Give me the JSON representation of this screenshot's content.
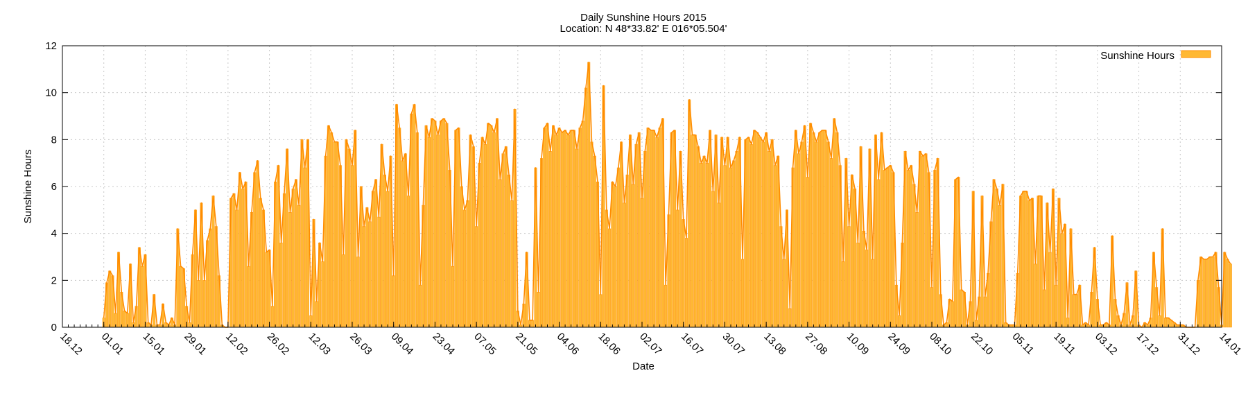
{
  "chart_data": {
    "type": "bar",
    "title": "Daily Sunshine Hours 2015",
    "subtitle": "Location: N 48*33.82'  E 016*05.504'",
    "xlabel": "Date",
    "ylabel": "Sunshine Hours",
    "legend_position": "top-right",
    "grid": true,
    "colors": {
      "fill": "#ffb833",
      "stroke": "#ff8c00"
    },
    "ylim": [
      0,
      12
    ],
    "yticks": [
      0,
      2,
      4,
      6,
      8,
      10,
      12
    ],
    "xlim": [
      "2014-12-18",
      "2016-01-14"
    ],
    "xtick_dates": [
      "2014-12-18",
      "2015-01-01",
      "2015-01-15",
      "2015-01-29",
      "2015-02-12",
      "2015-02-26",
      "2015-03-12",
      "2015-03-26",
      "2015-04-09",
      "2015-04-23",
      "2015-05-07",
      "2015-05-21",
      "2015-06-04",
      "2015-06-18",
      "2015-07-02",
      "2015-07-16",
      "2015-07-30",
      "2015-08-13",
      "2015-08-27",
      "2015-09-10",
      "2015-09-24",
      "2015-10-08",
      "2015-10-22",
      "2015-11-05",
      "2015-11-19",
      "2015-12-03",
      "2015-12-17",
      "2015-12-31",
      "2016-01-14"
    ],
    "xtick_labels": [
      "18.12",
      "01.01",
      "15.01",
      "29.01",
      "12.02",
      "26.02",
      "12.03",
      "26.03",
      "09.04",
      "23.04",
      "07.05",
      "21.05",
      "04.06",
      "18.06",
      "02.07",
      "16.07",
      "30.07",
      "13.08",
      "27.08",
      "10.09",
      "24.09",
      "08.10",
      "22.10",
      "05.11",
      "19.11",
      "03.12",
      "17.12",
      "31.12",
      "14.01"
    ],
    "series": [
      {
        "name": "Sunshine Hours",
        "start_date": "2015-01-01",
        "values": [
          0.4,
          1.9,
          2.4,
          2.2,
          0.6,
          3.2,
          1.5,
          0.7,
          0.6,
          2.7,
          0.2,
          0.9,
          3.4,
          2.6,
          3.1,
          0.2,
          0.1,
          1.4,
          0.1,
          0.1,
          1.0,
          0.2,
          0.1,
          0.4,
          0.1,
          4.2,
          2.6,
          2.5,
          0.9,
          0.2,
          3.1,
          5.0,
          2.0,
          5.3,
          2.0,
          3.7,
          4.2,
          5.6,
          4.3,
          2.2,
          0.1,
          0.0,
          0.0,
          5.5,
          5.7,
          5.0,
          6.6,
          5.9,
          6.2,
          2.6,
          4.9,
          6.6,
          7.1,
          5.5,
          5.0,
          3.2,
          3.3,
          0.9,
          6.2,
          6.9,
          3.6,
          5.7,
          7.6,
          4.9,
          5.9,
          6.3,
          5.2,
          8.0,
          6.8,
          8.0,
          0.5,
          4.6,
          1.1,
          3.6,
          2.8,
          7.3,
          8.6,
          8.3,
          7.9,
          7.9,
          6.9,
          3.1,
          8.0,
          7.6,
          6.9,
          8.4,
          3.0,
          6.0,
          4.3,
          5.1,
          4.5,
          5.8,
          6.3,
          4.7,
          7.8,
          6.5,
          5.8,
          7.3,
          2.2,
          9.5,
          8.5,
          7.1,
          7.4,
          5.6,
          9.1,
          9.5,
          8.3,
          1.8,
          5.2,
          8.6,
          8.1,
          8.9,
          8.8,
          8.2,
          8.8,
          8.9,
          8.7,
          6.7,
          2.6,
          8.4,
          8.5,
          6.0,
          5.0,
          5.4,
          8.2,
          7.7,
          4.3,
          7.0,
          8.1,
          7.8,
          8.7,
          8.6,
          8.3,
          8.9,
          6.3,
          7.4,
          7.7,
          6.5,
          5.4,
          9.3,
          0.7,
          0.1,
          1.0,
          3.2,
          0.3,
          0.3,
          6.8,
          1.5,
          7.2,
          8.5,
          8.7,
          7.5,
          8.6,
          8.2,
          8.5,
          8.3,
          8.4,
          8.2,
          8.4,
          8.4,
          7.6,
          8.5,
          8.8,
          10.2,
          11.3,
          7.9,
          7.3,
          6.2,
          1.4,
          10.3,
          5.0,
          4.2,
          6.2,
          6.0,
          6.8,
          7.9,
          5.3,
          6.5,
          8.2,
          6.1,
          7.8,
          8.3,
          5.5,
          7.5,
          8.5,
          8.4,
          8.4,
          8.1,
          8.5,
          8.9,
          1.8,
          4.8,
          8.3,
          8.4,
          5.0,
          7.5,
          4.6,
          3.8,
          9.7,
          8.2,
          8.2,
          7.7,
          7.0,
          7.3,
          7.0,
          8.4,
          5.8,
          8.2,
          5.3,
          8.1,
          6.9,
          8.1,
          6.8,
          7.1,
          7.5,
          8.1,
          2.9,
          8.0,
          8.1,
          7.8,
          8.4,
          8.3,
          8.1,
          7.9,
          8.3,
          7.5,
          8.0,
          6.9,
          7.3,
          4.3,
          2.9,
          5.0,
          0.8,
          6.8,
          8.4,
          7.4,
          7.9,
          8.6,
          6.4,
          8.7,
          8.3,
          7.9,
          8.3,
          8.4,
          8.4,
          7.9,
          7.2,
          8.9,
          8.3,
          6.9,
          2.8,
          7.2,
          4.3,
          6.5,
          5.9,
          3.6,
          7.7,
          4.1,
          3.3,
          7.6,
          2.9,
          8.2,
          6.3,
          8.3,
          6.7,
          6.8,
          6.9,
          6.6,
          1.8,
          0.5,
          3.6,
          7.5,
          6.7,
          6.9,
          6.1,
          4.9,
          7.5,
          7.3,
          7.4,
          6.6,
          1.7,
          6.7,
          7.2,
          1.4,
          0.1,
          0.2,
          1.2,
          1.1,
          6.3,
          6.4,
          1.6,
          1.5,
          0.1,
          1.1,
          5.8,
          0.3,
          1.3,
          5.6,
          1.3,
          2.3,
          4.5,
          6.3,
          5.9,
          5.2,
          6.1,
          0.2,
          0.1,
          0.1,
          0.1,
          2.3,
          5.6,
          5.8,
          5.8,
          5.4,
          5.5,
          2.7,
          5.6,
          5.6,
          1.6,
          5.3,
          3.2,
          5.9,
          1.8,
          5.5,
          4.0,
          4.4,
          0.4,
          4.2,
          1.4,
          1.4,
          1.8,
          0.1,
          0.2,
          0.1,
          1.5,
          3.4,
          1.2,
          0.1,
          0.1,
          0.2,
          0.1,
          3.9,
          1.2,
          0.5,
          0.1,
          0.6,
          1.9,
          0.1,
          0.5,
          2.4,
          0.1,
          0.0,
          0.2,
          0.1,
          0.4,
          3.2,
          1.7,
          0.5,
          4.2,
          0.4,
          0.4,
          0.3,
          0.2,
          0.1,
          0.1,
          0.1,
          0.0,
          0.0,
          0.0,
          0.0,
          2.0,
          3.0,
          2.9,
          2.9,
          3.0,
          3.0,
          3.2,
          1.7,
          0.1,
          3.2,
          2.9,
          2.7
        ]
      }
    ]
  }
}
